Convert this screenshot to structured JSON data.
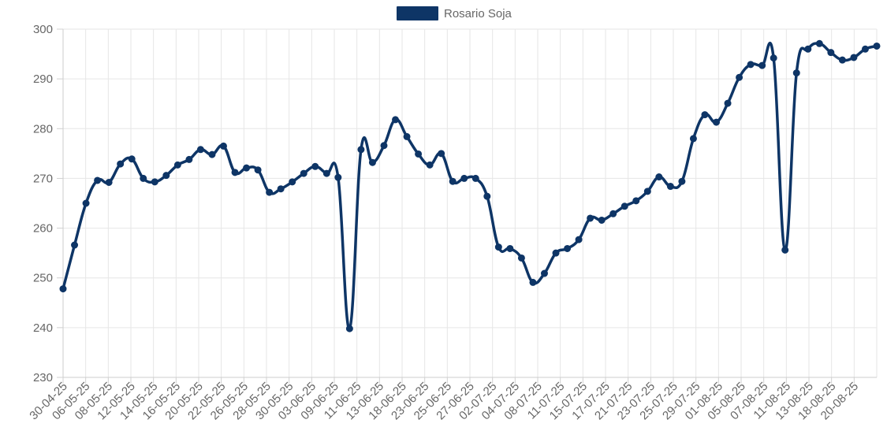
{
  "chart_data": {
    "type": "line",
    "title": "",
    "xlabel": "",
    "ylabel": "",
    "ylim": [
      230,
      300
    ],
    "yticks": [
      230,
      240,
      250,
      260,
      270,
      280,
      290,
      300
    ],
    "grid": true,
    "legend_position": "top-center",
    "x_tick_labels": [
      "30-04-25",
      "06-05-25",
      "08-05-25",
      "12-05-25",
      "14-05-25",
      "16-05-25",
      "20-05-25",
      "22-05-25",
      "26-05-25",
      "28-05-25",
      "30-05-25",
      "03-06-25",
      "09-06-25",
      "11-06-25",
      "13-06-25",
      "18-06-25",
      "23-06-25",
      "25-06-25",
      "27-06-25",
      "02-07-25",
      "04-07-25",
      "08-07-25",
      "11-07-25",
      "15-07-25",
      "17-07-25",
      "21-07-25",
      "23-07-25",
      "25-07-25",
      "29-07-25",
      "01-08-25",
      "05-08-25",
      "07-08-25",
      "11-08-25",
      "13-08-25",
      "18-08-25",
      "20-08-25"
    ],
    "series": [
      {
        "name": "Rosario Soja",
        "color": "#0e3566",
        "values": [
          247.8,
          256.6,
          265.0,
          269.6,
          269.2,
          272.9,
          273.9,
          270.0,
          269.3,
          270.6,
          272.7,
          273.8,
          275.8,
          274.8,
          276.5,
          271.2,
          272.1,
          271.7,
          267.2,
          267.9,
          269.3,
          271.0,
          272.4,
          271.0,
          270.2,
          239.8,
          275.8,
          273.2,
          276.6,
          281.8,
          278.4,
          274.9,
          272.7,
          275.0,
          269.4,
          270.0,
          270.0,
          266.4,
          256.2,
          255.9,
          254.0,
          249.1,
          250.9,
          255.0,
          255.9,
          257.7,
          262.0,
          261.6,
          262.9,
          264.4,
          265.5,
          267.4,
          270.3,
          268.4,
          269.4,
          278.0,
          282.8,
          281.3,
          285.1,
          290.3,
          292.9,
          292.7,
          294.2,
          255.6,
          291.2,
          296.0,
          297.1,
          295.3,
          293.8,
          294.3,
          296.0,
          296.6
        ]
      }
    ]
  }
}
